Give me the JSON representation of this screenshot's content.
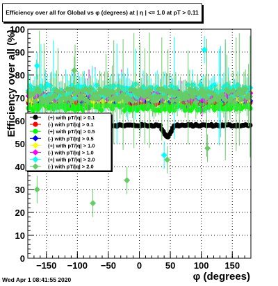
{
  "chart_data": {
    "type": "scatter",
    "title": "Efficiency over all for Global vs φ (degrees) at | η | <= 1.0 at pT > 0.11",
    "xlabel": "φ (degrees)",
    "ylabel": "Efficiency over all (%)",
    "xlim": [
      -180,
      180
    ],
    "ylim": [
      0,
      100
    ],
    "x_ticks": [
      "−150",
      "−100",
      "−50",
      "0",
      "50",
      "100",
      "150"
    ],
    "y_ticks": [
      "0",
      "10",
      "20",
      "30",
      "40",
      "50",
      "60",
      "70",
      "80",
      "90",
      "100"
    ],
    "grid": true,
    "legend_position": "center-left",
    "series": [
      {
        "name": "(+) with pT/|q| > 0.1",
        "color": "#000000",
        "marker": "circle",
        "level": 58.0,
        "noise": 0.4,
        "err": 0.8
      },
      {
        "name": "(-) with pT/|q| > 0.1",
        "color": "#ff0000",
        "marker": "circle",
        "level": 67.5,
        "noise": 0.5,
        "err": 1.0
      },
      {
        "name": "(+) with pT/|q| > 0.5",
        "color": "#00ff00",
        "marker": "circle",
        "level": 66.0,
        "noise": 1.5,
        "err": 1.5
      },
      {
        "name": "(-) with pT/|q| > 0.5",
        "color": "#0000ff",
        "marker": "diamond",
        "level": 70.0,
        "noise": 1.5,
        "err": 1.5
      },
      {
        "name": "(+) with pT/|q| > 1.0",
        "color": "#ffff00",
        "marker": "diamond",
        "level": 70.5,
        "noise": 2.0,
        "err": 2.5
      },
      {
        "name": "(-) with pT/|q| > 1.0",
        "color": "#ff00ff",
        "marker": "diamond",
        "level": 71.0,
        "noise": 2.0,
        "err": 2.5
      },
      {
        "name": "(+) with pT/|q| > 2.0",
        "color": "#00ffff",
        "marker": "diamond",
        "level": 73.0,
        "noise": 3.0,
        "err": 5.0
      },
      {
        "name": "(-) with pT/|q| > 2.0",
        "color": "#66cc66",
        "marker": "diamond",
        "level": 71.0,
        "noise": 3.0,
        "err": 6.0
      }
    ],
    "notable_points": [
      {
        "x": -165,
        "y": 30,
        "series": 7
      },
      {
        "x": -75,
        "y": 24,
        "series": 7
      },
      {
        "x": -20,
        "y": 34,
        "series": 7
      },
      {
        "x": 45,
        "y": 43,
        "series": 7
      },
      {
        "x": 105,
        "y": 91,
        "series": 6
      },
      {
        "x": 110,
        "y": 48,
        "series": 7
      },
      {
        "x": -165,
        "y": 84,
        "series": 6
      },
      {
        "x": -105,
        "y": 82,
        "series": 7
      },
      {
        "x": 40,
        "y": 45,
        "series": 6
      }
    ]
  },
  "timestamp": "Wed Apr  1 08:41:55 2020"
}
